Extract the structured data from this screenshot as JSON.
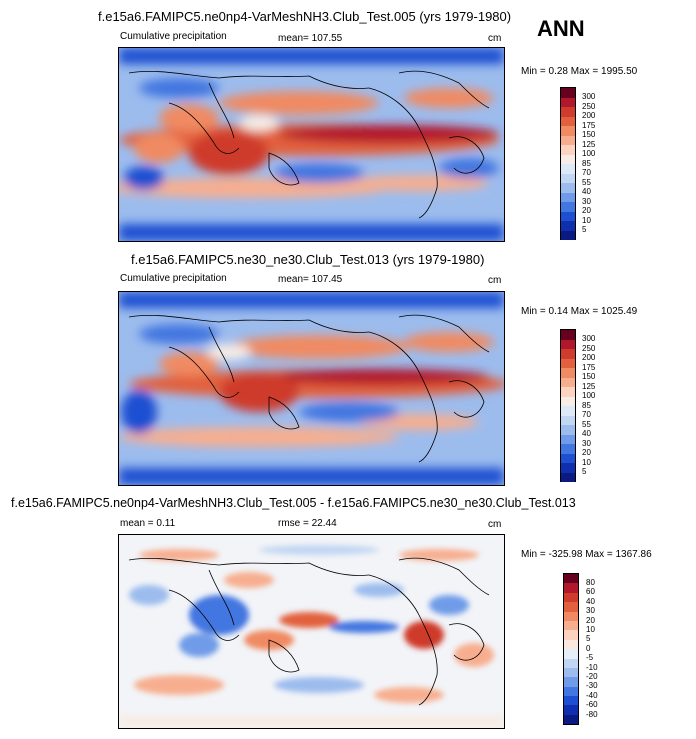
{
  "season": "ANN",
  "panels": [
    {
      "title": "f.e15a6.FAMIPC5.ne0np4-VarMeshNH3.Club_Test.005 (yrs 1979-1980)",
      "left_text": "Cumulative precipitation",
      "center_text": "mean= 107.55",
      "unit": "cm",
      "minmax": "Min =   0.28 Max = 1995.50",
      "colorbar": {
        "labels": [
          "300",
          "250",
          "200",
          "175",
          "150",
          "125",
          "100",
          "85",
          "70",
          "55",
          "40",
          "30",
          "20",
          "10",
          "5"
        ],
        "colors": [
          "#67001f",
          "#b2182b",
          "#cf3b2c",
          "#e2603e",
          "#f08a62",
          "#f7ae8f",
          "#fbd3bf",
          "#f7ede6",
          "#dde9f6",
          "#c1d6f2",
          "#9cbcee",
          "#6f9be8",
          "#4276e0",
          "#1f4fd1",
          "#0f2fae",
          "#0a1a82"
        ]
      }
    },
    {
      "title": "f.e15a6.FAMIPC5.ne30_ne30.Club_Test.013 (yrs 1979-1980)",
      "left_text": "Cumulative precipitation",
      "center_text": "mean= 107.45",
      "unit": "cm",
      "minmax": "Min =   0.14 Max = 1025.49",
      "colorbar": {
        "labels": [
          "300",
          "250",
          "200",
          "175",
          "150",
          "125",
          "100",
          "85",
          "70",
          "55",
          "40",
          "30",
          "20",
          "10",
          "5"
        ],
        "colors": [
          "#67001f",
          "#b2182b",
          "#cf3b2c",
          "#e2603e",
          "#f08a62",
          "#f7ae8f",
          "#fbd3bf",
          "#f7ede6",
          "#dde9f6",
          "#c1d6f2",
          "#9cbcee",
          "#6f9be8",
          "#4276e0",
          "#1f4fd1",
          "#0f2fae",
          "#0a1a82"
        ]
      }
    },
    {
      "title": "f.e15a6.FAMIPC5.ne0np4-VarMeshNH3.Club_Test.005 - f.e15a6.FAMIPC5.ne30_ne30.Club_Test.013",
      "left_text": "mean =   0.11",
      "center_text": "rmse =  22.44",
      "unit": "cm",
      "minmax": "Min = -325.98 Max = 1367.86",
      "colorbar": {
        "labels": [
          "80",
          "60",
          "40",
          "30",
          "20",
          "10",
          "5",
          "0",
          "-5",
          "-10",
          "-20",
          "-30",
          "-40",
          "-60",
          "-80"
        ],
        "colors": [
          "#67001f",
          "#b2182b",
          "#cf3b2c",
          "#e2603e",
          "#f08a62",
          "#f7ae8f",
          "#fbd3bf",
          "#fbe8de",
          "#e6eef8",
          "#c1d6f2",
          "#9cbcee",
          "#6f9be8",
          "#4276e0",
          "#1f4fd1",
          "#0f2fae",
          "#0a1a82"
        ]
      }
    }
  ]
}
